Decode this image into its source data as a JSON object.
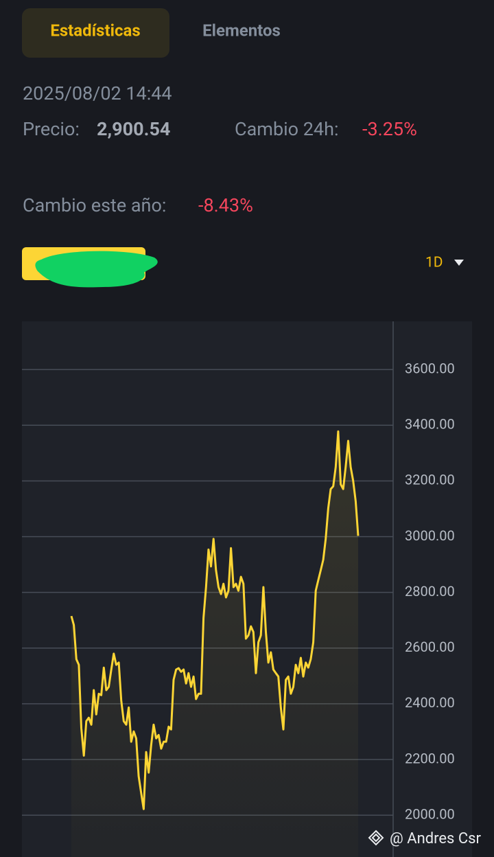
{
  "tabs": [
    "Estadísticas",
    "Elementos"
  ],
  "timestamp": "2025/08/02 14:44",
  "price": {
    "label": "Precio:",
    "value": "2,900.54"
  },
  "change_24h": {
    "label": "Cambio 24h:",
    "value": "-3.25%"
  },
  "change_year": {
    "label": "Cambio este año:",
    "value": "-8.43%"
  },
  "interval": "1D",
  "watermark": "@ Andres Csr",
  "chart_data": {
    "type": "line",
    "color": "#fcd535",
    "grid": true,
    "ylim": [
      1850,
      3773
    ],
    "yticks": [
      {
        "value": 2000,
        "label": "2000.00"
      },
      {
        "value": 2200,
        "label": "2200.00"
      },
      {
        "value": 2400,
        "label": "2400.00"
      },
      {
        "value": 2600,
        "label": "2600.00"
      },
      {
        "value": 2800,
        "label": "2800.00"
      },
      {
        "value": 3000,
        "label": "3000.00"
      },
      {
        "value": 3200,
        "label": "3200.00"
      },
      {
        "value": 3400,
        "label": "3400.00"
      },
      {
        "value": 3600,
        "label": "3600.00"
      }
    ],
    "values": [
      2715,
      2683,
      2560,
      2540,
      2313,
      2214,
      2338,
      2350,
      2325,
      2449,
      2362,
      2436,
      2431,
      2530,
      2449,
      2461,
      2523,
      2580,
      2540,
      2548,
      2412,
      2338,
      2325,
      2387,
      2264,
      2301,
      2276,
      2140,
      2079,
      2022,
      2227,
      2153,
      2251,
      2325,
      2276,
      2288,
      2239,
      2264,
      2264,
      2318,
      2308,
      2486,
      2523,
      2528,
      2515,
      2523,
      2473,
      2510,
      2461,
      2498,
      2417,
      2436,
      2436,
      2708,
      2819,
      2954,
      2893,
      2992,
      2880,
      2819,
      2794,
      2831,
      2782,
      2806,
      2959,
      2819,
      2831,
      2806,
      2856,
      2831,
      2634,
      2646,
      2678,
      2658,
      2510,
      2621,
      2646,
      2819,
      2658,
      2548,
      2585,
      2523,
      2510,
      2498,
      2387,
      2308,
      2486,
      2498,
      2436,
      2461,
      2540,
      2510,
      2565,
      2498,
      2548,
      2530,
      2560,
      2621,
      2806,
      2843,
      2880,
      2917,
      2992,
      3102,
      3171,
      3181,
      3250,
      3378,
      3188,
      3171,
      3250,
      3344,
      3250,
      3201,
      3127,
      3003
    ]
  }
}
